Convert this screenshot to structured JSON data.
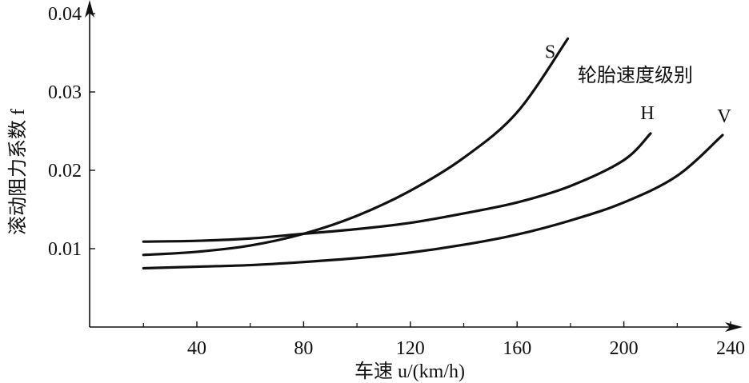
{
  "chart_data": {
    "type": "line",
    "title": "",
    "xlabel": "车速 u/(km/h)",
    "ylabel": "滚动阻力系数 f",
    "xlim": [
      0,
      240
    ],
    "ylim": [
      0,
      0.04
    ],
    "xticks": [
      40,
      80,
      120,
      160,
      200,
      240
    ],
    "xtick_labels": [
      "40",
      "80",
      "120",
      "160",
      "200",
      "240"
    ],
    "xminor_ticks": [
      20,
      60,
      100,
      140,
      180,
      220
    ],
    "yticks": [
      0.01,
      0.02,
      0.03,
      0.04
    ],
    "ytick_labels": [
      "0.01",
      "0.02",
      "0.03",
      "0.04"
    ],
    "grid": false,
    "legend_title": "轮胎速度级别",
    "series": [
      {
        "name": "S",
        "x": [
          20,
          40,
          60,
          80,
          100,
          120,
          140,
          160,
          179
        ],
        "y": [
          0.0092,
          0.0096,
          0.0104,
          0.0119,
          0.0142,
          0.0174,
          0.0216,
          0.0274,
          0.0368
        ]
      },
      {
        "name": "H",
        "x": [
          20,
          40,
          60,
          80,
          100,
          120,
          140,
          160,
          180,
          200,
          210
        ],
        "y": [
          0.0109,
          0.011,
          0.0113,
          0.0119,
          0.0125,
          0.0133,
          0.0145,
          0.0159,
          0.018,
          0.0213,
          0.0247
        ]
      },
      {
        "name": "V",
        "x": [
          20,
          40,
          60,
          80,
          100,
          120,
          140,
          160,
          180,
          200,
          220,
          237
        ],
        "y": [
          0.0075,
          0.0077,
          0.0079,
          0.0083,
          0.0088,
          0.0095,
          0.0105,
          0.0118,
          0.0136,
          0.0159,
          0.0193,
          0.0245
        ]
      }
    ]
  }
}
